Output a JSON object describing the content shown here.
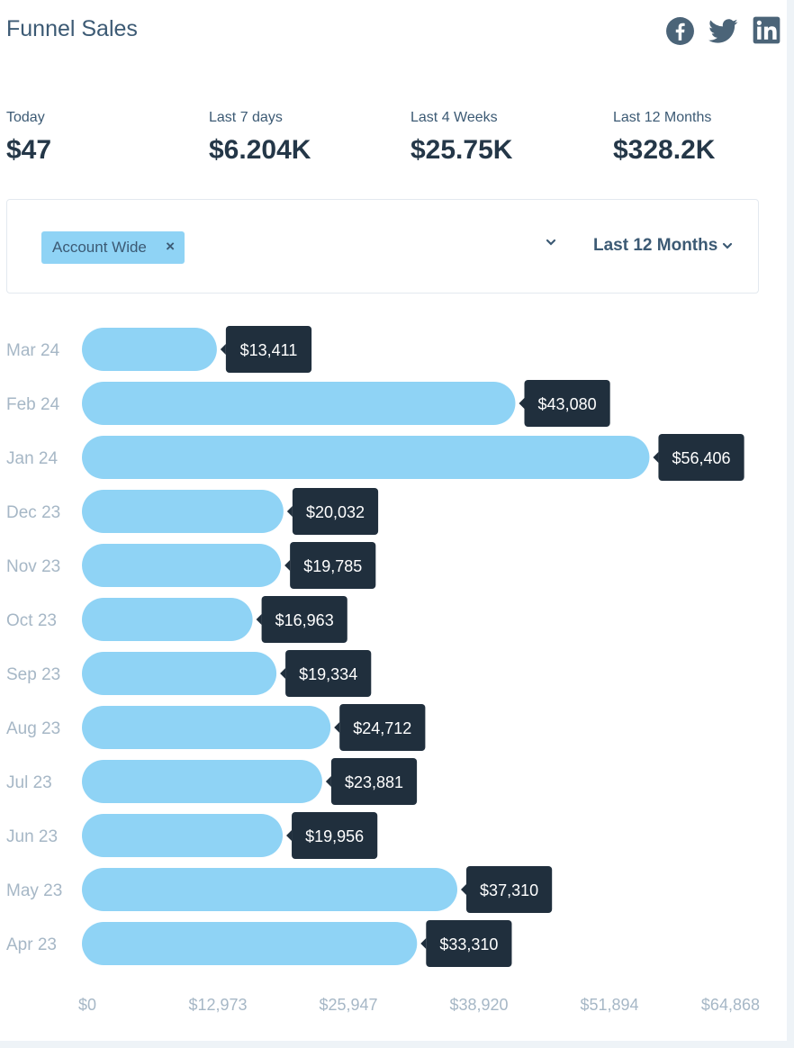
{
  "header": {
    "title": "Funnel Sales",
    "social": [
      "facebook-icon",
      "twitter-icon",
      "linkedin-icon"
    ]
  },
  "stats": [
    {
      "label": "Today",
      "value": "$47"
    },
    {
      "label": "Last 7 days",
      "value": "$6.204K"
    },
    {
      "label": "Last 4 Weeks",
      "value": "$25.75K"
    },
    {
      "label": "Last 12 Months",
      "value": "$328.2K"
    }
  ],
  "filters": {
    "chip_label": "Account Wide",
    "period_label": "Last 12 Months"
  },
  "colors": {
    "bar": "#8fd3f5",
    "tooltip": "#202f3d",
    "muted_text": "#a6b7c6",
    "heading_text": "#3c5a74"
  },
  "chart_data": {
    "type": "bar",
    "orientation": "horizontal",
    "categories": [
      "Mar 24",
      "Feb 24",
      "Jan 24",
      "Dec 23",
      "Nov 23",
      "Oct 23",
      "Sep 23",
      "Aug 23",
      "Jul 23",
      "Jun 23",
      "May 23",
      "Apr 23"
    ],
    "values": [
      13411,
      43080,
      56406,
      20032,
      19785,
      16963,
      19334,
      24712,
      23881,
      19956,
      37310,
      33310
    ],
    "value_labels": [
      "$13,411",
      "$43,080",
      "$56,406",
      "$20,032",
      "$19,785",
      "$16,963",
      "$19,334",
      "$24,712",
      "$23,881",
      "$19,956",
      "$37,310",
      "$33,310"
    ],
    "x_ticks": [
      0,
      12973,
      25947,
      38920,
      51894,
      64868
    ],
    "x_tick_labels": [
      "$0",
      "$12,973",
      "$25,947",
      "$38,920",
      "$51,894",
      "$64,868"
    ],
    "xlim": [
      0,
      64868
    ],
    "grid": false,
    "legend": "none"
  }
}
